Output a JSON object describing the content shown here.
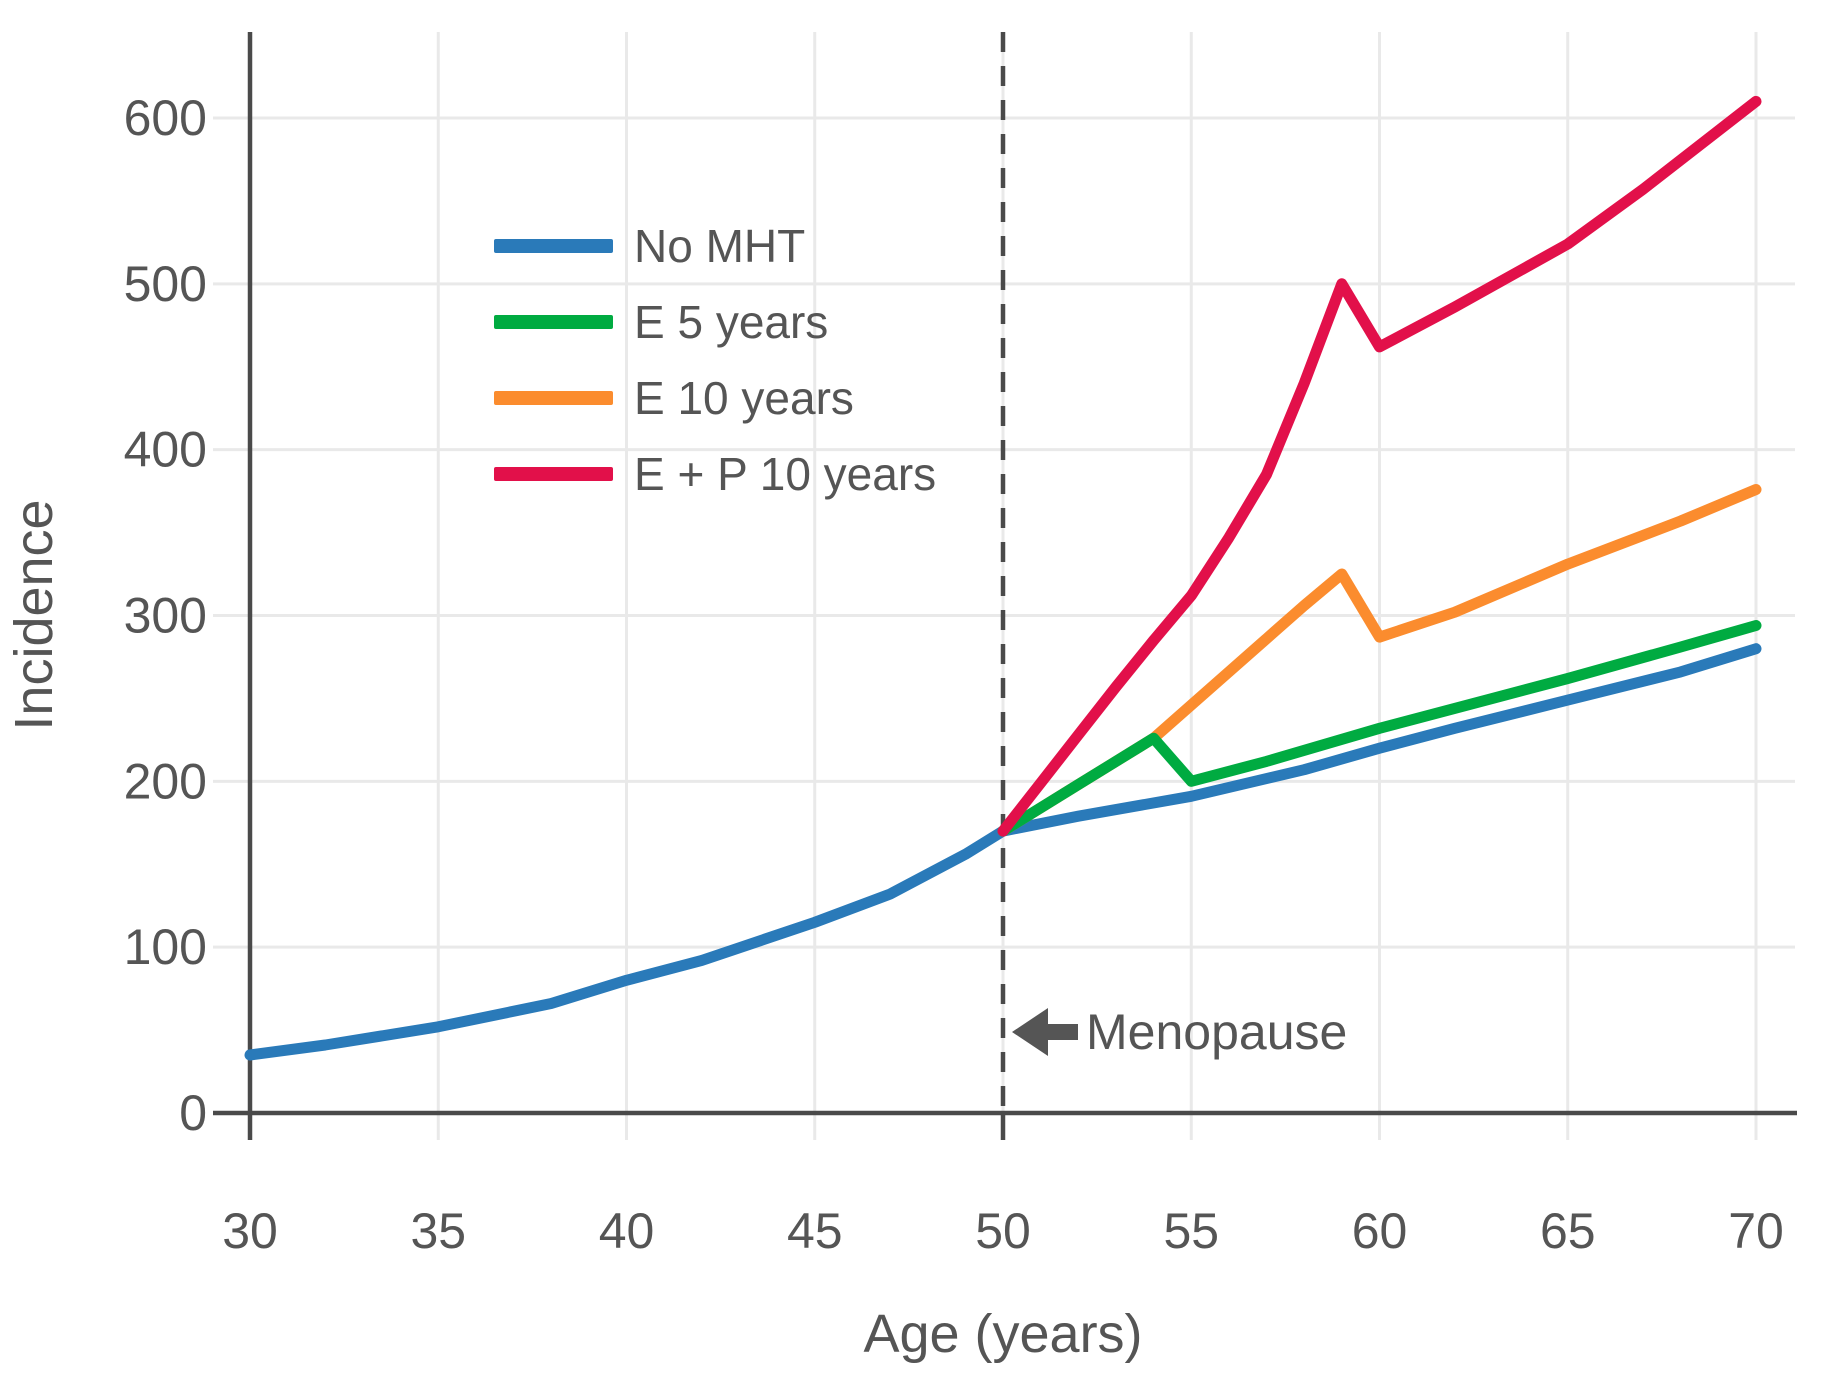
{
  "chart_data": {
    "type": "line",
    "title": "",
    "xlabel": "Age (years)",
    "ylabel": "Incidence",
    "xlim": [
      30,
      70
    ],
    "ylim": [
      0,
      650
    ],
    "xticks": [
      30,
      35,
      40,
      45,
      50,
      55,
      60,
      65,
      70
    ],
    "yticks": [
      0,
      100,
      200,
      300,
      400,
      500,
      600
    ],
    "grid": true,
    "legend_position": "upper-left-inside",
    "series": [
      {
        "name": "No MHT",
        "color": "#2a7ab9",
        "points": [
          [
            30,
            35
          ],
          [
            32,
            41
          ],
          [
            35,
            52
          ],
          [
            38,
            66
          ],
          [
            40,
            80
          ],
          [
            42,
            92
          ],
          [
            45,
            115
          ],
          [
            47,
            132
          ],
          [
            49,
            156
          ],
          [
            50,
            170
          ],
          [
            52,
            179
          ],
          [
            55,
            191
          ],
          [
            58,
            207
          ],
          [
            60,
            220
          ],
          [
            62,
            232
          ],
          [
            65,
            249
          ],
          [
            68,
            266
          ],
          [
            70,
            280
          ]
        ]
      },
      {
        "name": "E 5 years",
        "color": "#00ab41",
        "points": [
          [
            50,
            170
          ],
          [
            52,
            198
          ],
          [
            54,
            226
          ],
          [
            55,
            200
          ],
          [
            57,
            212
          ],
          [
            60,
            232
          ],
          [
            63,
            250
          ],
          [
            65,
            262
          ],
          [
            68,
            281
          ],
          [
            70,
            294
          ]
        ]
      },
      {
        "name": "E 10 years",
        "color": "#fb8c2e",
        "points": [
          [
            50,
            170
          ],
          [
            52,
            198
          ],
          [
            54,
            226
          ],
          [
            55,
            246
          ],
          [
            57,
            286
          ],
          [
            58,
            306
          ],
          [
            59,
            325
          ],
          [
            60,
            287
          ],
          [
            62,
            302
          ],
          [
            65,
            331
          ],
          [
            68,
            357
          ],
          [
            70,
            376
          ]
        ]
      },
      {
        "name": "E + P 10 years",
        "color": "#e2104a",
        "points": [
          [
            50,
            170
          ],
          [
            51,
            199
          ],
          [
            52,
            228
          ],
          [
            53,
            257
          ],
          [
            54,
            285
          ],
          [
            55,
            312
          ],
          [
            56,
            347
          ],
          [
            57,
            385
          ],
          [
            58,
            440
          ],
          [
            59,
            500
          ],
          [
            60,
            462
          ],
          [
            62,
            486
          ],
          [
            65,
            524
          ],
          [
            67,
            557
          ],
          [
            70,
            610
          ]
        ]
      }
    ],
    "annotations": {
      "menopause": {
        "label": "Menopause",
        "x": 50,
        "arrow": "left"
      }
    }
  },
  "colors": {
    "background": "#ffffff",
    "axis": "#4a4a4a",
    "grid": "#e9e9e9",
    "text": "#555555",
    "dashed_line": "#4a4a4a",
    "arrow": "#555555"
  }
}
